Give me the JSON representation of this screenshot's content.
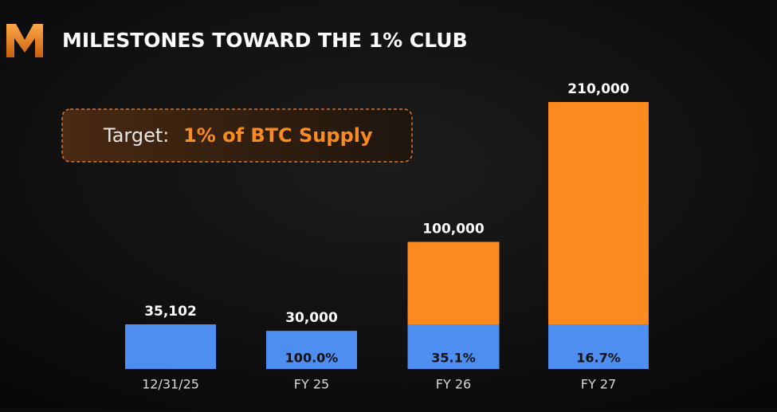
{
  "chart_data": {
    "type": "bar",
    "title": "MILESTONES TOWARD THE 1% CLUB",
    "annotation": {
      "prefix": "Target:",
      "highlight": "1% of BTC Supply"
    },
    "categories": [
      "12/31/25",
      "FY 25",
      "FY 26",
      "FY 27"
    ],
    "series": [
      {
        "color": "#4d8ef0",
        "values": [
          35102,
          30000,
          35102,
          35102
        ]
      },
      {
        "color": "#fb8b1e",
        "values": [
          null,
          null,
          64898,
          174898
        ]
      }
    ],
    "totals": [
      35102,
      30000,
      100000,
      210000
    ],
    "total_labels": [
      "35,102",
      "30,000",
      "100,000",
      "210,000"
    ],
    "shares": [
      null,
      100.0,
      35.1,
      16.7
    ],
    "share_labels": [
      null,
      "100.0%",
      "35.1%",
      "16.7%"
    ]
  }
}
